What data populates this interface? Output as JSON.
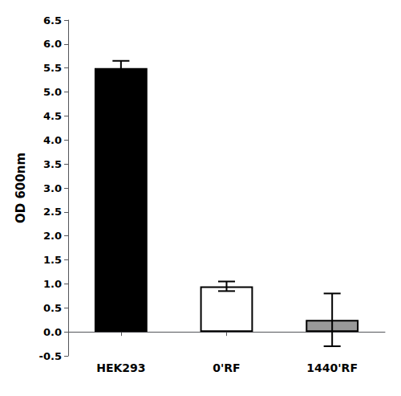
{
  "chart_data": {
    "type": "bar",
    "categories": [
      "HEK293",
      "0'RF",
      "1440'RF"
    ],
    "values": [
      5.5,
      0.95,
      0.25
    ],
    "errors": [
      0.15,
      0.1,
      0.55
    ],
    "colors": [
      "#000000",
      "#ffffff",
      "#999999"
    ],
    "ylabel": "OD 600nm",
    "ylim": [
      -0.5,
      6.5
    ],
    "yticks": [
      -0.5,
      {
        "value": 0,
        "label": "0.0"
      },
      0.5,
      {
        "value": 1,
        "label": "1.0"
      },
      1.5,
      {
        "value": 2,
        "label": "2.0"
      },
      2.5,
      {
        "value": 3,
        "label": "3.0"
      },
      3.5,
      {
        "value": 4,
        "label": "4.0"
      },
      4.5,
      {
        "value": 5,
        "label": "5.0"
      },
      5.5,
      {
        "value": 6,
        "label": "6.0"
      },
      6.5
    ],
    "grid": false
  }
}
